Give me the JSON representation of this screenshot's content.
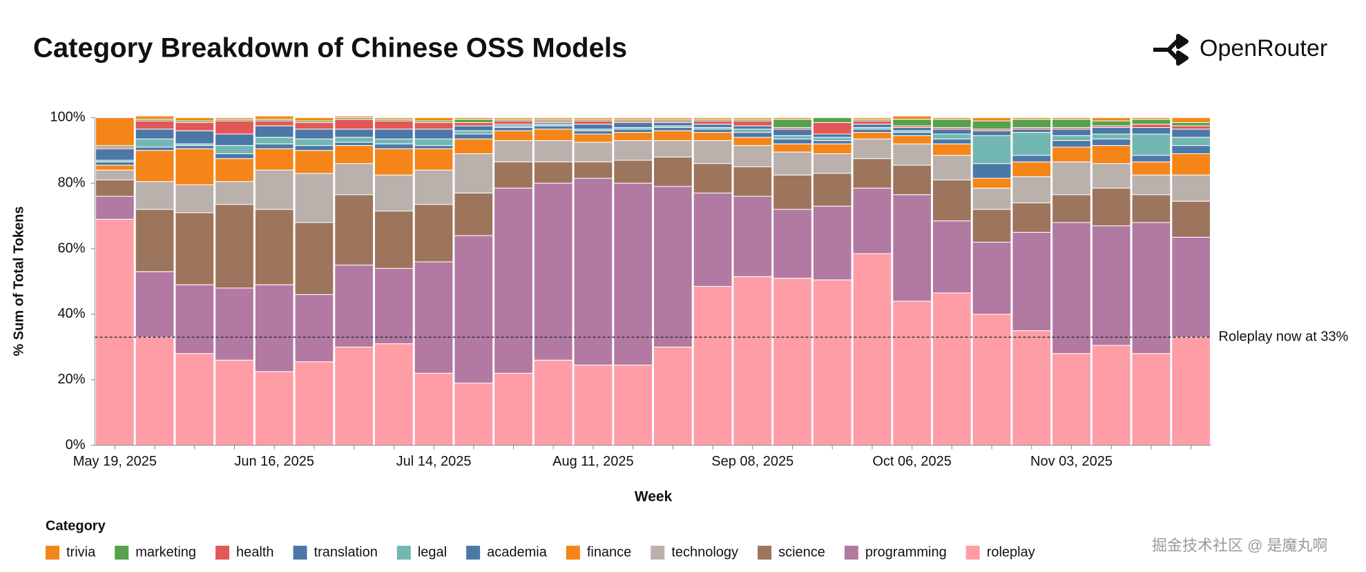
{
  "header": {
    "brand": "OpenRouter"
  },
  "footer": {
    "watermark": "掘金技术社区 @ 是魔丸啊"
  },
  "chart_data": {
    "type": "stacked_bar",
    "title": "Category Breakdown of Chinese OSS Models",
    "x_label": "Week",
    "y_label": "% Sum of Total Tokens",
    "legend_title": "Category",
    "categories": [
      "May 19, 2025",
      null,
      null,
      null,
      "Jun 16, 2025",
      null,
      null,
      null,
      "Jul 14, 2025",
      null,
      null,
      null,
      "Aug 11, 2025",
      null,
      null,
      null,
      "Sep 08, 2025",
      null,
      null,
      null,
      "Oct 06, 2025",
      null,
      null,
      null,
      "Nov 03, 2025",
      null,
      null,
      null
    ],
    "ylim": [
      0,
      100
    ],
    "yticks": [
      {
        "value": 0,
        "label": "0%"
      },
      {
        "value": 20,
        "label": "20%"
      },
      {
        "value": 40,
        "label": "40%"
      },
      {
        "value": 60,
        "label": "60%"
      },
      {
        "value": 80,
        "label": "80%"
      },
      {
        "value": 100,
        "label": "100%"
      }
    ],
    "annotation": {
      "text": "Roleplay now at 33%",
      "value": 33
    },
    "series": [
      {
        "name": "roleplay",
        "color": "#ff9da6",
        "values": [
          69,
          33,
          28,
          26,
          22.5,
          25.5,
          30,
          31,
          22,
          19,
          22,
          26,
          24.5,
          24.5,
          30,
          48.5,
          51.5,
          51,
          50.5,
          58.5,
          44,
          46.5,
          40,
          35,
          28,
          30.5,
          28,
          33
        ]
      },
      {
        "name": "programming",
        "color": "#b279a2",
        "values": [
          7,
          20,
          21,
          22,
          26.5,
          20.5,
          25,
          23,
          34,
          45,
          56.5,
          54,
          57,
          55.5,
          49,
          28.5,
          24.5,
          21,
          22.5,
          20,
          32.5,
          22,
          22,
          30,
          40,
          36.5,
          40,
          30.5
        ]
      },
      {
        "name": "science",
        "color": "#9d755d",
        "values": [
          5,
          19,
          22,
          25.5,
          23,
          22,
          21.5,
          17.5,
          17.5,
          13,
          8,
          6.5,
          5,
          7,
          9,
          9,
          9,
          10.5,
          10,
          9,
          9,
          12.5,
          10,
          9,
          8.5,
          11.5,
          8.5,
          11
        ]
      },
      {
        "name": "technology",
        "color": "#bab0ac",
        "values": [
          3,
          8.5,
          8.5,
          7,
          12,
          15,
          9.5,
          11,
          10.5,
          12,
          6.5,
          6.5,
          6,
          6,
          5,
          7,
          6.5,
          7,
          6,
          6,
          6.5,
          7.5,
          6.5,
          8,
          10,
          7.5,
          6,
          8
        ]
      },
      {
        "name": "finance",
        "color": "#f58518",
        "values": [
          1.5,
          9.5,
          11,
          7,
          6.5,
          7,
          5.5,
          8,
          6.5,
          4.5,
          3,
          3.5,
          2.5,
          2.5,
          3,
          2.5,
          2.5,
          2.5,
          3,
          2,
          2.5,
          3.5,
          3,
          4.5,
          4.5,
          5.5,
          4,
          6.5
        ]
      },
      {
        "name": "academia",
        "color": "#4c78a8",
        "values": [
          1,
          1,
          1,
          1.5,
          1.5,
          1.5,
          1,
          1.5,
          1,
          1.5,
          1,
          1,
          1,
          1,
          1,
          1,
          1.5,
          1.5,
          1,
          1,
          1,
          1.5,
          4.5,
          2,
          2,
          2,
          2,
          2.5
        ]
      },
      {
        "name": "legal",
        "color": "#72b7b2",
        "values": [
          0.5,
          2.5,
          0.5,
          2.5,
          2,
          2,
          1.5,
          1.5,
          2,
          1,
          0.5,
          0.5,
          0.5,
          0.5,
          0.5,
          0.5,
          1,
          1,
          1,
          0.5,
          0.5,
          1.5,
          8.5,
          7,
          1.5,
          1.5,
          6.5,
          2.5
        ]
      },
      {
        "name": "translation",
        "color": "#4c78a8",
        "values": [
          3.5,
          3,
          4,
          3.5,
          3.5,
          3,
          2.5,
          3,
          3,
          1.5,
          0.5,
          0.5,
          1.5,
          1.5,
          1,
          1,
          1,
          2,
          1,
          1,
          1,
          1.5,
          1.5,
          1,
          2,
          2,
          2,
          2.5
        ]
      },
      {
        "name": "health",
        "color": "#e45756",
        "values": [
          0.5,
          2.5,
          2.5,
          4,
          1.5,
          2,
          3,
          2.5,
          2,
          1,
          1,
          0.5,
          1,
          0.5,
          0.5,
          1,
          1.5,
          0.5,
          3.5,
          1,
          0.5,
          0.5,
          0.5,
          0.5,
          0.5,
          0.5,
          1,
          1
        ]
      },
      {
        "name": "marketing",
        "color": "#54a24b",
        "values": [
          0.5,
          0.5,
          0.5,
          0.5,
          0.5,
          0.5,
          0.5,
          0.5,
          0.5,
          1,
          0.5,
          0.5,
          0.5,
          0.5,
          0.5,
          0.5,
          0.5,
          2.5,
          1.5,
          0.5,
          2,
          2.5,
          2.5,
          2.5,
          2.5,
          1.5,
          1.5,
          1
        ]
      },
      {
        "name": "trivia",
        "color": "#f58518",
        "values": [
          8.5,
          1,
          1,
          0.5,
          1,
          1,
          0.5,
          0.5,
          1,
          0.5,
          0.5,
          0.5,
          0.5,
          0.5,
          0.5,
          0.5,
          0.5,
          0.5,
          0,
          0.5,
          1,
          0.5,
          1,
          0.5,
          0.5,
          1,
          0.5,
          1.5
        ]
      }
    ]
  }
}
